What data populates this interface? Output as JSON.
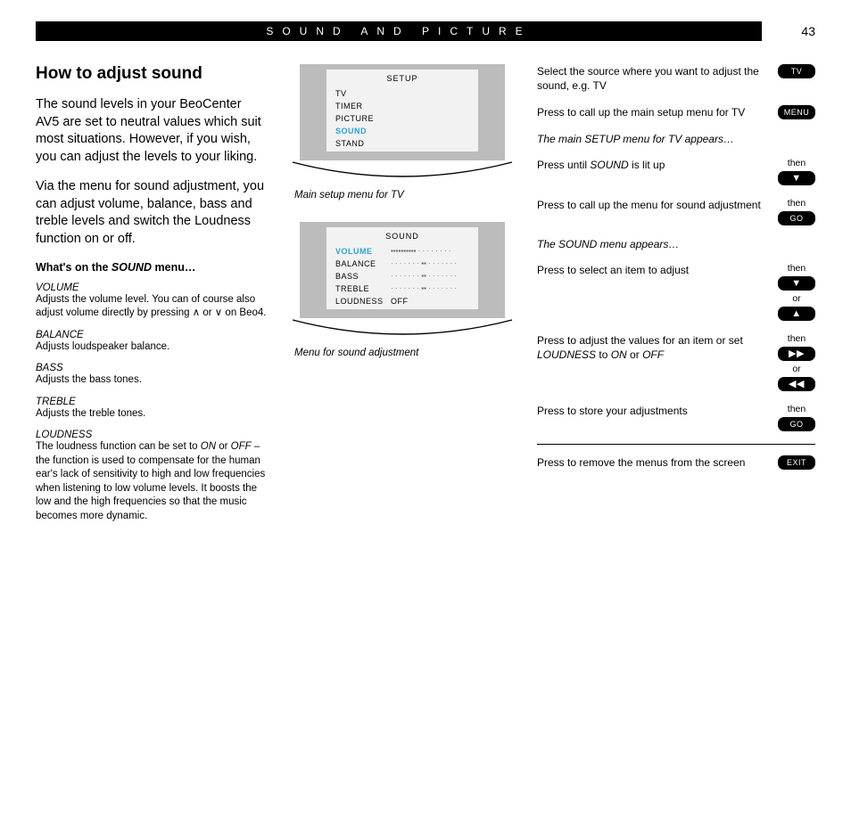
{
  "header": {
    "title": "SOUND AND PICTURE",
    "page": "43"
  },
  "left": {
    "h1": "How to adjust sound",
    "intro1": "The sound levels in your BeoCenter AV5 are set to neutral values which suit most situations. However, if you wish, you can adjust the levels to your liking.",
    "intro2": "Via the menu for sound adjustment, you can adjust volume, balance, bass and treble levels and switch the Loudness function on or off.",
    "subtitle": "What's on the SOUND menu…",
    "items": [
      {
        "term": "VOLUME",
        "desc": "Adjusts the volume level. You can of course also adjust volume directly by pressing ∧ or ∨ on Beo4."
      },
      {
        "term": "BALANCE",
        "desc": "Adjusts loudspeaker balance."
      },
      {
        "term": "BASS",
        "desc": "Adjusts the bass tones."
      },
      {
        "term": "TREBLE",
        "desc": "Adjusts the treble tones."
      },
      {
        "term": "LOUDNESS",
        "desc": "The loudness function can be set to ON or OFF – the function is used to compensate for the human ear's lack of sensitivity to high and low frequencies when listening to low volume levels. It boosts the low and the high frequencies so that the music becomes more dynamic."
      }
    ]
  },
  "mid": {
    "panel1": {
      "title": "SETUP",
      "rows": [
        {
          "label": "TV",
          "hi": false
        },
        {
          "label": "TIMER",
          "hi": false
        },
        {
          "label": "PICTURE",
          "hi": false
        },
        {
          "label": "SOUND",
          "hi": true
        },
        {
          "label": "STAND",
          "hi": false
        }
      ],
      "caption": "Main setup menu for TV"
    },
    "panel2": {
      "title": "SOUND",
      "rows": [
        {
          "label": "VOLUME",
          "hi": true,
          "bar": "▪▪▪▪▪▪▪▪▪▪ · · · · · · · ·"
        },
        {
          "label": "BALANCE",
          "hi": false,
          "bar": "· · · · · · · ▪▪ · · · · · · ·"
        },
        {
          "label": "BASS",
          "hi": false,
          "bar": "· · · · · · · ▪▪ · · · · · · ·"
        },
        {
          "label": "TREBLE",
          "hi": false,
          "bar": "· · · · · · · ▪▪ · · · · · · ·"
        },
        {
          "label": "LOUDNESS",
          "hi": false,
          "val": "OFF"
        }
      ],
      "caption": "Menu for sound adjustment"
    }
  },
  "right": {
    "s1": {
      "text": "Select the source where you want to adjust the sound, e.g. TV",
      "btn": "TV"
    },
    "s2": {
      "text": "Press to call up the main setup menu for TV",
      "btn": "MENU"
    },
    "n1": "The main SETUP menu for TV appears…",
    "s3": {
      "text": "Press until SOUND is lit up",
      "pre": "then",
      "btn": "▼"
    },
    "s4": {
      "text": "Press to call up the menu for sound adjustment",
      "pre": "then",
      "btn": "GO"
    },
    "n2": "The SOUND menu appears…",
    "s5": {
      "text": "Press to select an item to adjust",
      "pre1": "then",
      "btn1": "▼",
      "mid": "or",
      "btn2": "▲"
    },
    "s6": {
      "text": "Press to adjust the values for an item or set LOUDNESS to ON or OFF",
      "pre1": "then",
      "btn1": "▶▶",
      "mid": "or",
      "btn2": "◀◀"
    },
    "s7": {
      "text": "Press to store your adjustments",
      "pre": "then",
      "btn": "GO"
    },
    "s8": {
      "text": "Press to remove the menus from the screen",
      "btn": "EXIT"
    }
  }
}
